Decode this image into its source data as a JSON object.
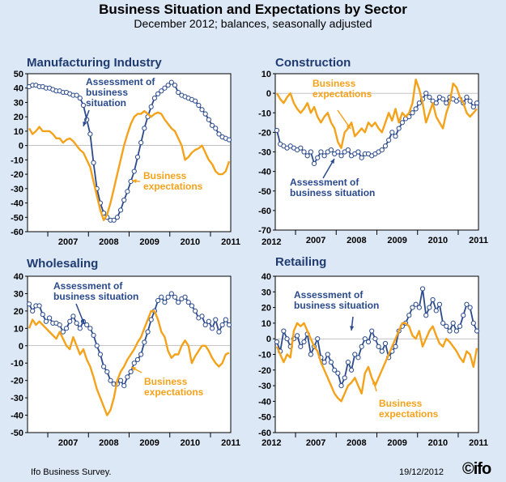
{
  "title": "Business Situation and Expectations by Sector",
  "subtitle": "December 2012; balances, seasonally adjusted",
  "footer": {
    "source": "Ifo Business Survey.",
    "date": "19/12/2012",
    "logo": "©ifo"
  },
  "colors": {
    "assessment": "#2a4a8c",
    "expectations": "#f5a21b",
    "plot_bg": "#ffffff",
    "title": "#1f3b70"
  },
  "chart_data": [
    {
      "type": "line",
      "title": "Manufacturing Industry",
      "ylim": [
        -60,
        50
      ],
      "yticks": [
        "50",
        "40",
        "30",
        "20",
        "10",
        "0",
        "-10",
        "-20",
        "-30",
        "-40",
        "-50",
        "-60"
      ],
      "xticks": [
        "2007",
        "2008",
        "2009",
        "2010",
        "2011",
        "2012"
      ],
      "x_start": "2006-07",
      "series": [
        {
          "name": "Assessment of business situation",
          "label": "Assessment of business situation",
          "values": [
            41,
            42,
            42,
            41,
            41,
            40,
            40,
            39,
            38,
            38,
            37,
            37,
            36,
            35,
            35,
            33,
            28,
            18,
            8,
            -12,
            -30,
            -40,
            -47,
            -50,
            -52,
            -52,
            -50,
            -45,
            -38,
            -32,
            -25,
            -18,
            -8,
            2,
            12,
            20,
            27,
            33,
            36,
            38,
            40,
            42,
            44,
            42,
            37,
            35,
            34,
            33,
            32,
            31,
            28,
            25,
            22,
            18,
            14,
            12,
            8,
            6,
            5,
            4
          ],
          "marker": "o"
        },
        {
          "name": "Business expectations",
          "label": "Business expectations",
          "values": [
            12,
            8,
            10,
            13,
            10,
            10,
            10,
            8,
            5,
            5,
            2,
            4,
            5,
            3,
            0,
            -3,
            -5,
            -10,
            -15,
            -25,
            -35,
            -45,
            -52,
            -48,
            -40,
            -30,
            -20,
            -10,
            0,
            8,
            15,
            20,
            22,
            22,
            24,
            22,
            20,
            22,
            23,
            22,
            18,
            15,
            12,
            10,
            5,
            0,
            -10,
            -8,
            -5,
            -3,
            -2,
            0,
            -5,
            -10,
            -13,
            -18,
            -20,
            -20,
            -18,
            -11
          ],
          "marker": "none"
        }
      ]
    },
    {
      "type": "line",
      "title": "Construction",
      "ylim": [
        -70,
        10
      ],
      "yticks": [
        "10",
        "0",
        "-10",
        "-20",
        "-30",
        "-40",
        "-50",
        "-60",
        "-70"
      ],
      "xticks": [
        "2007",
        "2008",
        "2009",
        "2010",
        "2011",
        "2012"
      ],
      "x_start": "2006-07",
      "series": [
        {
          "name": "Assessment of business situation",
          "label": "Assessment of business situation",
          "values": [
            -19,
            -26,
            -27,
            -28,
            -27,
            -28,
            -29,
            -28,
            -30,
            -32,
            -30,
            -36,
            -33,
            -30,
            -32,
            -30,
            -29,
            -31,
            -30,
            -32,
            -30,
            -29,
            -32,
            -31,
            -30,
            -33,
            -31,
            -31,
            -32,
            -31,
            -30,
            -29,
            -27,
            -24,
            -20,
            -22,
            -18,
            -15,
            -13,
            -12,
            -10,
            -8,
            -5,
            -3,
            0,
            -2,
            -4,
            -5,
            -2,
            -3,
            -5,
            -2,
            -3,
            -4,
            -3,
            -5,
            -2,
            -4,
            -7,
            -5
          ],
          "marker": "o"
        },
        {
          "name": "Business expectations",
          "label": "Business expectations",
          "values": [
            0,
            -3,
            -5,
            -2,
            0,
            -5,
            -8,
            -10,
            -8,
            -5,
            -10,
            -7,
            -12,
            -15,
            -12,
            -10,
            -15,
            -18,
            -25,
            -28,
            -20,
            -18,
            -15,
            -22,
            -20,
            -18,
            -20,
            -15,
            -17,
            -15,
            -18,
            -20,
            -15,
            -10,
            -14,
            -8,
            -15,
            -10,
            -12,
            -10,
            -5,
            7,
            2,
            -5,
            -15,
            -10,
            -5,
            -12,
            -15,
            -18,
            -10,
            -5,
            5,
            3,
            -2,
            -5,
            -10,
            -12,
            -10,
            -8
          ],
          "marker": "none"
        }
      ]
    },
    {
      "type": "line",
      "title": "Wholesaling",
      "ylim": [
        -50,
        40
      ],
      "yticks": [
        "40",
        "30",
        "20",
        "10",
        "0",
        "-10",
        "-20",
        "-30",
        "-40",
        "-50"
      ],
      "xticks": [
        "2007",
        "2008",
        "2009",
        "2010",
        "2011",
        "2012"
      ],
      "x_start": "2006-07",
      "series": [
        {
          "name": "Assessment of business situation",
          "label": "Assessment of business situation",
          "values": [
            24,
            20,
            23,
            23,
            18,
            14,
            16,
            13,
            13,
            12,
            8,
            10,
            14,
            17,
            13,
            10,
            14,
            12,
            10,
            6,
            0,
            -5,
            -12,
            -15,
            -20,
            -22,
            -22,
            -20,
            -23,
            -18,
            -15,
            -10,
            -8,
            -5,
            2,
            8,
            15,
            20,
            26,
            28,
            25,
            28,
            30,
            28,
            25,
            27,
            28,
            25,
            23,
            20,
            16,
            17,
            12,
            14,
            10,
            15,
            8,
            12,
            15,
            12
          ],
          "marker": "o"
        },
        {
          "name": "Business expectations",
          "label": "Business expectations",
          "values": [
            10,
            15,
            12,
            14,
            12,
            10,
            8,
            6,
            4,
            8,
            4,
            0,
            -2,
            5,
            0,
            -5,
            -2,
            -8,
            -12,
            -18,
            -25,
            -30,
            -35,
            -40,
            -37,
            -30,
            -20,
            -15,
            -12,
            -8,
            -5,
            -2,
            2,
            5,
            10,
            15,
            20,
            20,
            15,
            8,
            5,
            -3,
            -7,
            -5,
            -5,
            0,
            3,
            0,
            -10,
            -6,
            -3,
            0,
            0,
            -3,
            -7,
            -10,
            -12,
            -10,
            -5,
            -4
          ],
          "marker": "none"
        }
      ]
    },
    {
      "type": "line",
      "title": "Retailing",
      "ylim": [
        -60,
        40
      ],
      "yticks": [
        "40",
        "30",
        "20",
        "10",
        "0",
        "-10",
        "-20",
        "-30",
        "-40",
        "-50",
        "-60"
      ],
      "xticks": [
        "2007",
        "2008",
        "2009",
        "2010",
        "2011",
        "2012"
      ],
      "x_start": "2006-07",
      "series": [
        {
          "name": "Assessment of business situation",
          "label": "Assessment of business situation",
          "values": [
            -2,
            -8,
            5,
            0,
            -5,
            0,
            2,
            -5,
            -2,
            3,
            -10,
            -5,
            0,
            -12,
            -15,
            -10,
            -15,
            -20,
            -22,
            -30,
            -25,
            -15,
            -20,
            -10,
            -12,
            -5,
            0,
            -2,
            5,
            0,
            -5,
            -8,
            -3,
            -12,
            -8,
            -5,
            5,
            8,
            10,
            15,
            20,
            22,
            20,
            32,
            15,
            20,
            25,
            18,
            22,
            10,
            8,
            5,
            10,
            5,
            8,
            15,
            22,
            20,
            10,
            5
          ],
          "marker": "o"
        },
        {
          "name": "Business expectations",
          "label": "Business expectations",
          "values": [
            -5,
            -10,
            -15,
            -10,
            -12,
            5,
            10,
            8,
            10,
            5,
            0,
            -5,
            -8,
            -15,
            -20,
            -25,
            -30,
            -35,
            -38,
            -40,
            -35,
            -30,
            -28,
            -25,
            -30,
            -35,
            -22,
            -18,
            -25,
            -30,
            -25,
            -20,
            -15,
            -10,
            -5,
            0,
            5,
            10,
            10,
            8,
            2,
            0,
            5,
            -5,
            0,
            5,
            8,
            2,
            -3,
            -5,
            0,
            -2,
            -5,
            -8,
            -12,
            -15,
            -8,
            -10,
            -18,
            -6
          ],
          "marker": "none"
        }
      ]
    }
  ],
  "annotations": {
    "assessment": [
      "Assessment of",
      "business",
      "situation"
    ],
    "assessment_c": [
      "Assessment of",
      "business situation"
    ],
    "assessment_w": [
      "Assessment of",
      "business situation"
    ],
    "assessment_r": [
      "Assessment of",
      "business situation"
    ],
    "expectations": [
      "Business",
      "expectations"
    ]
  }
}
